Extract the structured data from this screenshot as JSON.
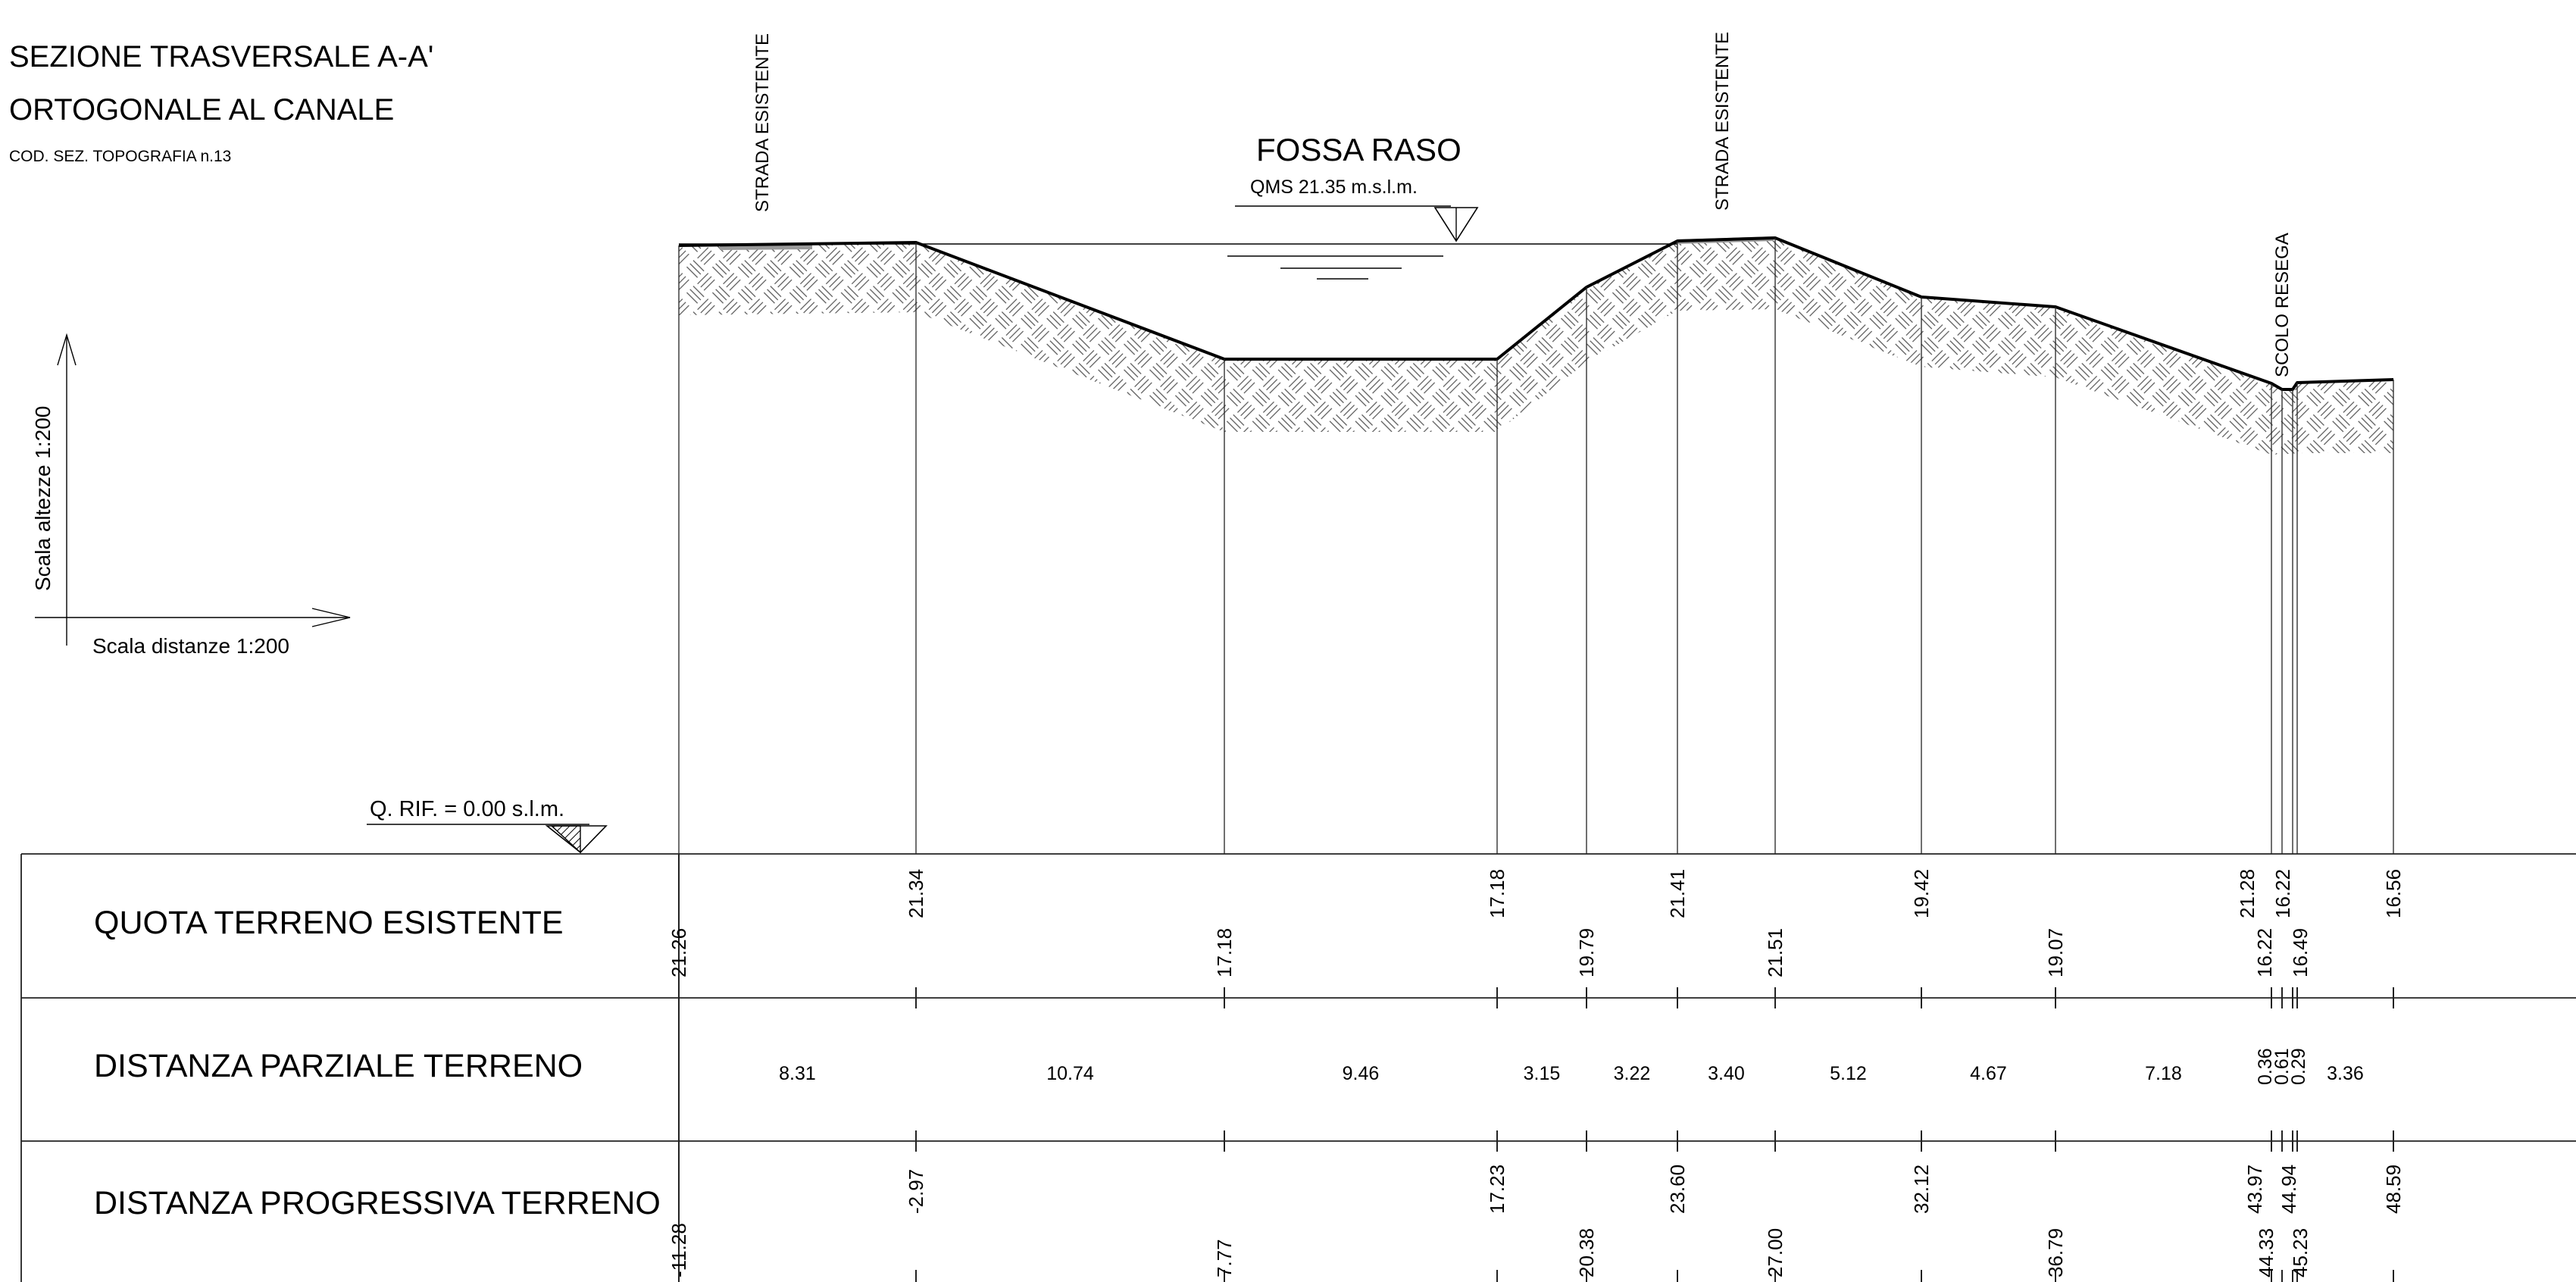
{
  "title_line1": "SEZIONE TRASVERSALE A-A'",
  "title_line2": "ORTOGONALE AL CANALE",
  "code": "COD. SEZ. TOPOGRAFIA n.13",
  "scale_vertical": "Scala altezze 1:200",
  "scale_horizontal": "Scala distanze 1:200",
  "reference_level": "Q. RIF. = 0.00 s.l.m.",
  "features": {
    "road_left": "STRADA ESISTENTE",
    "road_right": "STRADA ESISTENTE",
    "ditch": "FOSSA RASO",
    "water_level": "QMS 21.35 m.s.l.m.",
    "drain": "SCOLO RESEGA"
  },
  "rows": {
    "quota": "QUOTA TERRENO ESISTENTE",
    "parziale": "DISTANZA PARZIALE TERRENO",
    "progressiva": "DISTANZA PROGRESSIVA TERRENO"
  },
  "points": [
    {
      "quota": "21.26",
      "progressiva": "-11.28"
    },
    {
      "quota": "21.34",
      "progressiva": "-2.97"
    },
    {
      "quota": "17.18",
      "progressiva": "7.77"
    },
    {
      "quota": "17.18",
      "progressiva": "17.23"
    },
    {
      "quota": "19.79",
      "progressiva": "20.38"
    },
    {
      "quota": "21.41",
      "progressiva": "23.60"
    },
    {
      "quota": "21.51",
      "progressiva": "27.00"
    },
    {
      "quota": "19.42",
      "progressiva": "32.12"
    },
    {
      "quota": "19.07",
      "progressiva": "36.79"
    },
    {
      "quota": "21.28",
      "progressiva": "43.97"
    },
    {
      "quota": "16.22",
      "progressiva": "44.33"
    },
    {
      "quota": "16.22",
      "progressiva": "44.94"
    },
    {
      "quota": "16.49",
      "progressiva": "45.23"
    },
    {
      "quota": "16.56",
      "progressiva": "48.59"
    }
  ],
  "partial_distances": [
    "8.31",
    "10.74",
    "9.46",
    "3.15",
    "3.22",
    "3.40",
    "5.12",
    "4.67",
    "7.18",
    "0.36",
    "0.61",
    "0.29",
    "3.36"
  ]
}
